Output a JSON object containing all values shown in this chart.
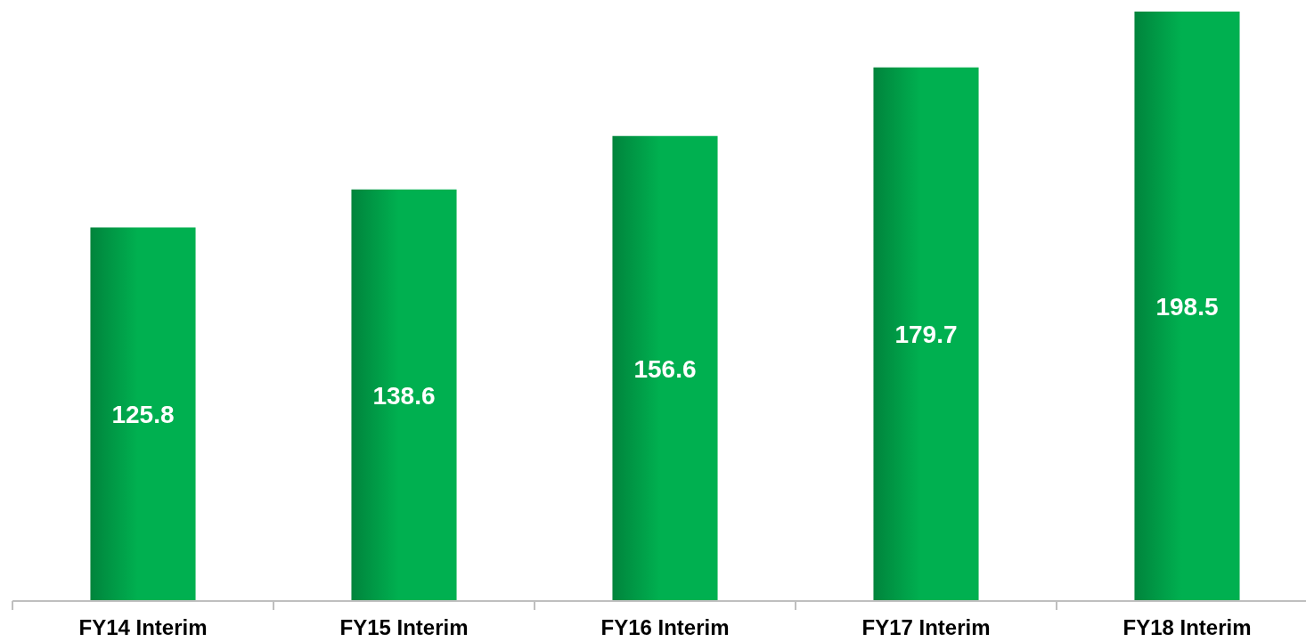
{
  "chart_data": {
    "type": "bar",
    "categories": [
      "FY14 Interim",
      "FY15 Interim",
      "FY16 Interim",
      "FY17 Interim",
      "FY18 Interim"
    ],
    "values": [
      125.8,
      138.6,
      156.6,
      179.7,
      198.5
    ],
    "color": "#00b050",
    "data_labels": true
  }
}
